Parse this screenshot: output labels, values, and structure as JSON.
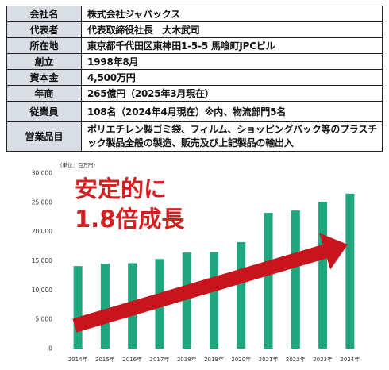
{
  "company_profile": {
    "rows": [
      {
        "label": "会社名",
        "value": "株式会社ジャパックス"
      },
      {
        "label": "代表者",
        "value": "代表取締役社長　大木武司"
      },
      {
        "label": "所在地",
        "value": "東京都千代田区東神田1-5-5 馬喰町JPCビル"
      },
      {
        "label": "創立",
        "value": "1998年8月"
      },
      {
        "label": "資本金",
        "value": "4,500万円"
      },
      {
        "label": "年商",
        "value": "265億円（2025年3月現在）"
      },
      {
        "label": "従業員",
        "value": "108名（2024年4月現在）※内、物流部門5名"
      },
      {
        "label": "営業品目",
        "value": "ポリエチレン製ゴミ袋、フィルム、ショッピングバック等のプラスチック製品全般の製造、販売及び上記製品の輸出入"
      }
    ]
  },
  "chart_data": {
    "type": "bar",
    "unit_note": "（単位：百万円）",
    "categories": [
      "2014年",
      "2015年",
      "2016年",
      "2017年",
      "2018年",
      "2019年",
      "2020年",
      "2021年",
      "2022年",
      "2023年",
      "2024年"
    ],
    "values": [
      14100,
      14500,
      14600,
      15300,
      16400,
      16500,
      18200,
      23200,
      23600,
      25100,
      26500
    ],
    "ylim": [
      0,
      30000
    ],
    "yticks": [
      0,
      5000,
      10000,
      15000,
      20000,
      25000,
      30000
    ],
    "ytick_labels": [
      "0",
      "5,000",
      "10,000",
      "15,000",
      "20,000",
      "25,000",
      "30,000"
    ],
    "grid": false,
    "bar_color": "#1fa67e",
    "annotation": {
      "line1": "安定的に",
      "line2": "1.8倍成長",
      "color": "#d42020"
    },
    "arrow_color": "#c8141c"
  }
}
